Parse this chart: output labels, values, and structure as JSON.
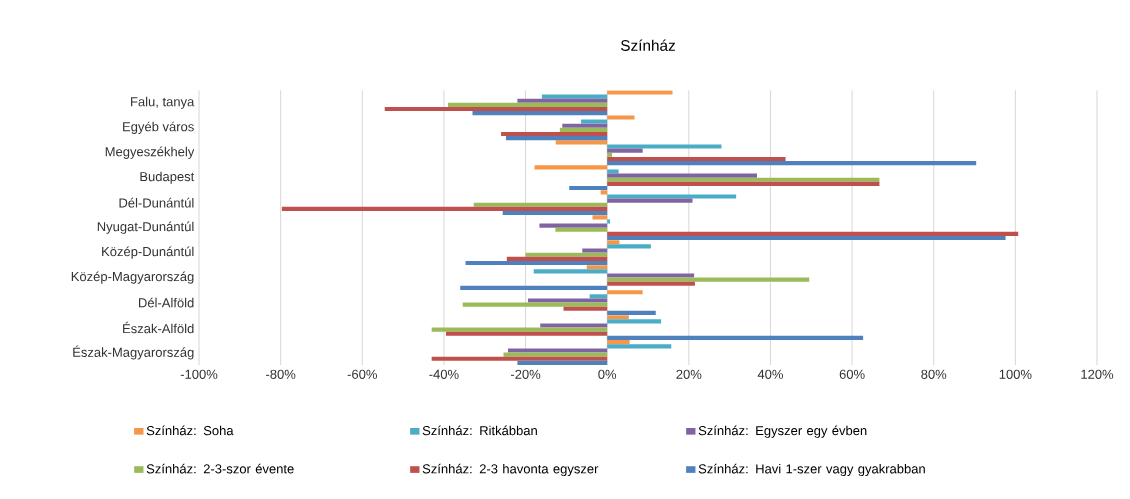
{
  "chart_data": {
    "type": "bar",
    "orientation": "horizontal",
    "title": "Színház",
    "categories": [
      "Falu, tanya",
      "Egyéb város",
      "Megyeszékhely",
      "Budapest",
      "Dél-Dunántúl",
      "Nyugat-Dunántúl",
      "Közép-Dunántúl",
      "Közép-Magyarország",
      "Dél-Alföld",
      "Észak-Alföld",
      "Észak-Magyarország"
    ],
    "series": [
      {
        "name": "Színház: Soha",
        "color": "#f79646",
        "values": [
          16,
          6.7,
          -12.6,
          -17.8,
          -1.6,
          -3.6,
          3,
          -5,
          8.7,
          5.3,
          5.5
        ]
      },
      {
        "name": "Színház: Ritkábban",
        "color": "#4bacc6",
        "values": [
          -16,
          -6.4,
          28,
          2.8,
          31.6,
          0.7,
          10.7,
          -18,
          -4.3,
          13.2,
          15.7
        ]
      },
      {
        "name": "Színház: Egyszer egy évben",
        "color": "#8064a2",
        "values": [
          -22,
          -11,
          8.7,
          36.7,
          20.9,
          -16.6,
          -6.1,
          21.3,
          -19.4,
          -16.4,
          -24.3
        ]
      },
      {
        "name": "Színház: 2-3-szor évente",
        "color": "#9bbb59",
        "values": [
          -39,
          -11.6,
          1.2,
          66.7,
          -32.7,
          -12.7,
          -20,
          49.5,
          -35.4,
          -43,
          -25.4
        ]
      },
      {
        "name": "Színház: 2-3 havonta egyszer",
        "color": "#c0504d",
        "values": [
          -54.5,
          -26,
          43.7,
          66.7,
          -79.7,
          100.7,
          -24.6,
          21.5,
          -10.7,
          -39.5,
          -43
        ]
      },
      {
        "name": "Színház: Havi 1-szer vagy gyakrabban",
        "color": "#4f81bd",
        "values": [
          -33,
          -24.8,
          90.4,
          -9.3,
          -25.6,
          97.6,
          -34.7,
          -36,
          11.9,
          62.7,
          -22
        ]
      }
    ],
    "xlim": [
      -100,
      120
    ],
    "xticks": [
      {
        "value": -100,
        "label": "-100%"
      },
      {
        "value": -80,
        "label": "-80%"
      },
      {
        "value": -60,
        "label": "-60%"
      },
      {
        "value": -40,
        "label": "-40%"
      },
      {
        "value": -20,
        "label": "-20%"
      },
      {
        "value": 0,
        "label": "0%"
      },
      {
        "value": 20,
        "label": "20%"
      },
      {
        "value": 40,
        "label": "40%"
      },
      {
        "value": 60,
        "label": "60%"
      },
      {
        "value": 80,
        "label": "80%"
      },
      {
        "value": 100,
        "label": "100%"
      },
      {
        "value": 120,
        "label": "120%"
      }
    ],
    "grid": "x",
    "legend": "bottom"
  }
}
